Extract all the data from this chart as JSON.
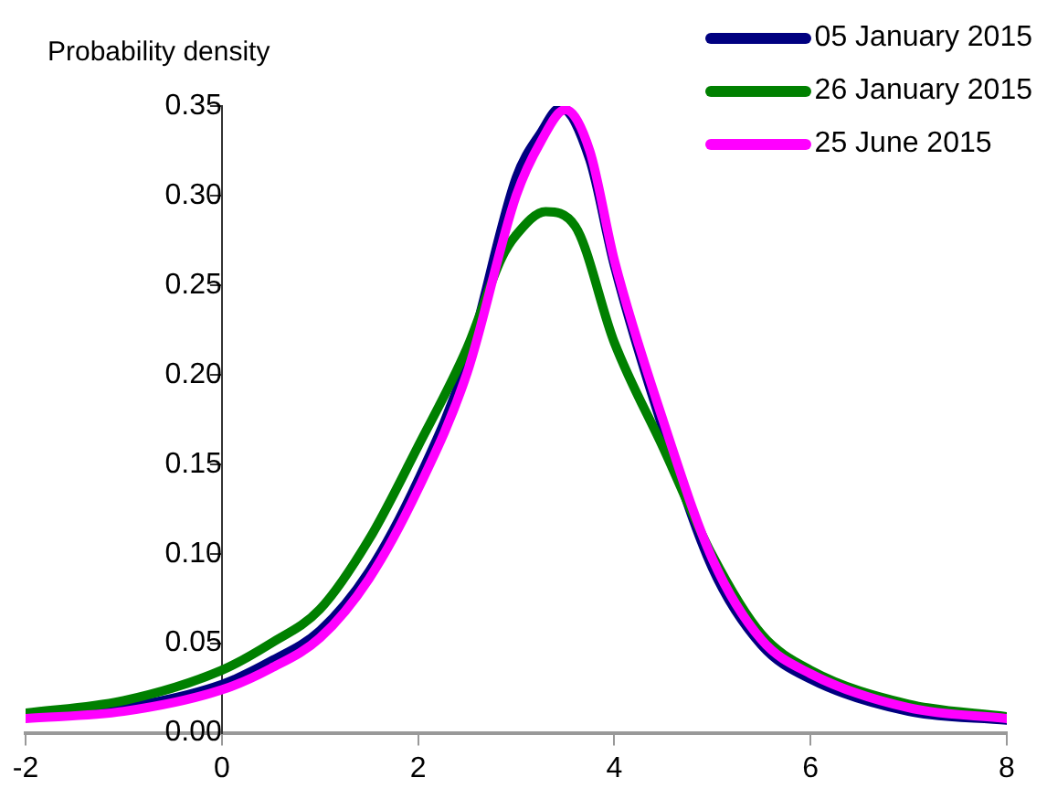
{
  "chart_data": {
    "type": "line",
    "ylabel": "Probability density",
    "xlim": [
      -2,
      8
    ],
    "xticks": [
      -2,
      0,
      2,
      4,
      6,
      8
    ],
    "ylim": [
      0,
      0.35
    ],
    "yticks": [
      {
        "value": 0,
        "label": "0.00"
      },
      {
        "value": 0.05,
        "label": "0.05"
      },
      {
        "value": 0.1,
        "label": "0.10"
      },
      {
        "value": 0.15,
        "label": "0.15"
      },
      {
        "value": 0.2,
        "label": "0.20"
      },
      {
        "value": 0.25,
        "label": "0.25"
      },
      {
        "value": 0.3,
        "label": "0.30"
      },
      {
        "value": 0.35,
        "label": "0.35"
      }
    ],
    "grid": false,
    "legend": "top right",
    "series": [
      {
        "name": "05 January 2015",
        "color": "#000080",
        "x": [
          -2,
          -1,
          0,
          0.5,
          1,
          1.5,
          2,
          2.5,
          3,
          3.25,
          3.45,
          3.75,
          4,
          4.5,
          5,
          5.5,
          6,
          7,
          8
        ],
        "values": [
          0.009,
          0.014,
          0.027,
          0.04,
          0.057,
          0.09,
          0.141,
          0.208,
          0.31,
          0.335,
          0.349,
          0.32,
          0.261,
          0.169,
          0.092,
          0.049,
          0.03,
          0.012,
          0.007
        ]
      },
      {
        "name": "26 January 2015",
        "color": "#008000",
        "x": [
          -2,
          -1,
          0,
          0.5,
          1,
          1.5,
          2,
          2.5,
          2.85,
          3,
          3.3,
          3.6,
          4,
          4.5,
          5,
          5.5,
          6,
          7,
          8
        ],
        "values": [
          0.011,
          0.018,
          0.035,
          0.05,
          0.069,
          0.108,
          0.16,
          0.215,
          0.265,
          0.278,
          0.291,
          0.283,
          0.218,
          0.159,
          0.099,
          0.055,
          0.035,
          0.016,
          0.009
        ]
      },
      {
        "name": "25 June 2015",
        "color": "#ff00ff",
        "x": [
          -2,
          -1,
          0,
          0.5,
          1,
          1.5,
          2,
          2.5,
          3,
          3.25,
          3.5,
          3.75,
          4,
          4.5,
          5,
          5.5,
          6,
          7,
          8
        ],
        "values": [
          0.008,
          0.012,
          0.024,
          0.036,
          0.053,
          0.086,
          0.136,
          0.201,
          0.3,
          0.33,
          0.348,
          0.325,
          0.264,
          0.174,
          0.097,
          0.052,
          0.033,
          0.014,
          0.008
        ]
      }
    ]
  }
}
